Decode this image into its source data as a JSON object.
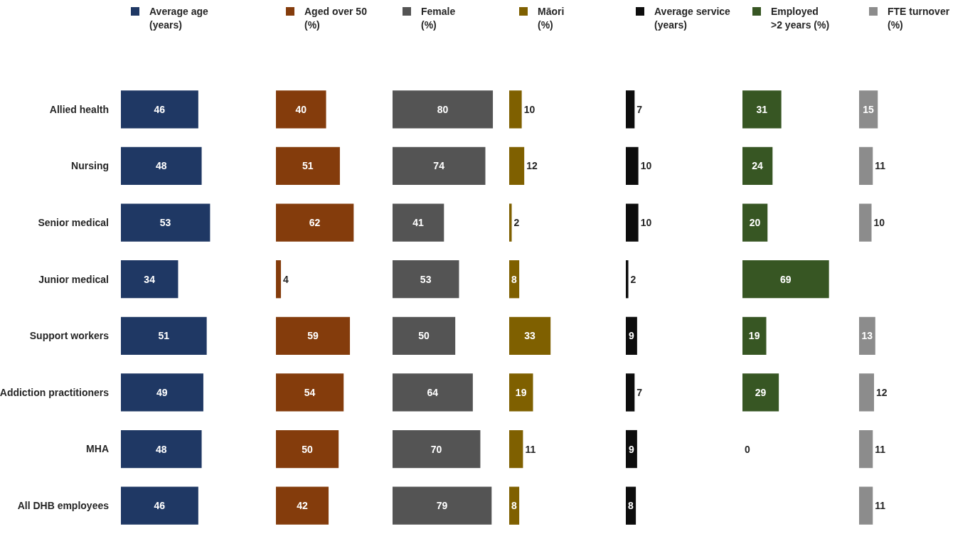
{
  "chart_data": [
    {
      "type": "bar",
      "orientation": "horizontal",
      "categories": [
        "Allied health",
        "Nursing",
        "Senior medical",
        "Junior medical",
        "Support workers",
        "Addiction practitioners",
        "MHA",
        "All DHB employees"
      ],
      "series": [
        {
          "name": "Average age\n(years)",
          "color": "#1f3864",
          "values": [
            46,
            48,
            53,
            34,
            51,
            49,
            48,
            46
          ]
        }
      ],
      "data_labels": true,
      "legend": "top left",
      "tick_labels": "y",
      "grid": false
    },
    {
      "type": "bar",
      "orientation": "horizontal",
      "categories": [
        null,
        null,
        null,
        null,
        null,
        null,
        null,
        null
      ],
      "series": [
        {
          "name": "Aged over 50\n(%)",
          "color": "#843c0c",
          "values": [
            40,
            51,
            62,
            4,
            59,
            54,
            50,
            42
          ]
        }
      ],
      "data_labels": true,
      "legend": "top",
      "tick_labels": false,
      "grid": false
    },
    {
      "type": "bar",
      "orientation": "horizontal",
      "categories": [
        null,
        null,
        null,
        null,
        null,
        null,
        null,
        null
      ],
      "series": [
        {
          "name": "Female\n(%)",
          "color": "#545454",
          "values": [
            80,
            74,
            41,
            53,
            50,
            64,
            70,
            79
          ]
        }
      ],
      "data_labels": true,
      "legend": "top left",
      "tick_labels": false,
      "grid": false
    },
    {
      "type": "bar",
      "orientation": "horizontal",
      "categories": [
        null,
        null,
        null,
        null,
        null,
        null,
        null,
        null
      ],
      "series": [
        {
          "name": "Māori\n(%)",
          "color": "#7f6000",
          "values": [
            10,
            12,
            2,
            8,
            33,
            19,
            11,
            8
          ]
        }
      ],
      "data_labels": true,
      "legend": "top",
      "tick_labels": false,
      "grid": false
    },
    {
      "type": "bar",
      "orientation": "horizontal",
      "categories": [
        null,
        null,
        null,
        null,
        null,
        null,
        null,
        null
      ],
      "series": [
        {
          "name": "Average service\n(years)",
          "color": "#0d0d0d",
          "values": [
            7,
            10,
            10,
            2,
            9,
            7,
            9,
            8
          ]
        }
      ],
      "data_labels": true,
      "legend": "top",
      "tick_labels": false,
      "grid": false
    },
    {
      "type": "bar",
      "orientation": "horizontal",
      "categories": [
        null,
        null,
        null,
        null,
        null,
        null,
        null,
        null
      ],
      "series": [
        {
          "name": "Employed\n>2 years (%)",
          "color": "#375623",
          "values": [
            31,
            24,
            20,
            69,
            19,
            29,
            0,
            null
          ]
        }
      ],
      "data_labels": true,
      "legend": "top",
      "tick_labels": false,
      "grid": false
    },
    {
      "type": "bar",
      "orientation": "horizontal",
      "categories": [
        null,
        null,
        null,
        null,
        null,
        null,
        null,
        null
      ],
      "series": [
        {
          "name": "FTE turnover\n(%)",
          "color": "#8c8c8c",
          "values": [
            15,
            11,
            10,
            null,
            13,
            12,
            11,
            11
          ]
        }
      ],
      "data_labels": true,
      "legend": "top",
      "tick_labels": false,
      "grid": false
    }
  ]
}
